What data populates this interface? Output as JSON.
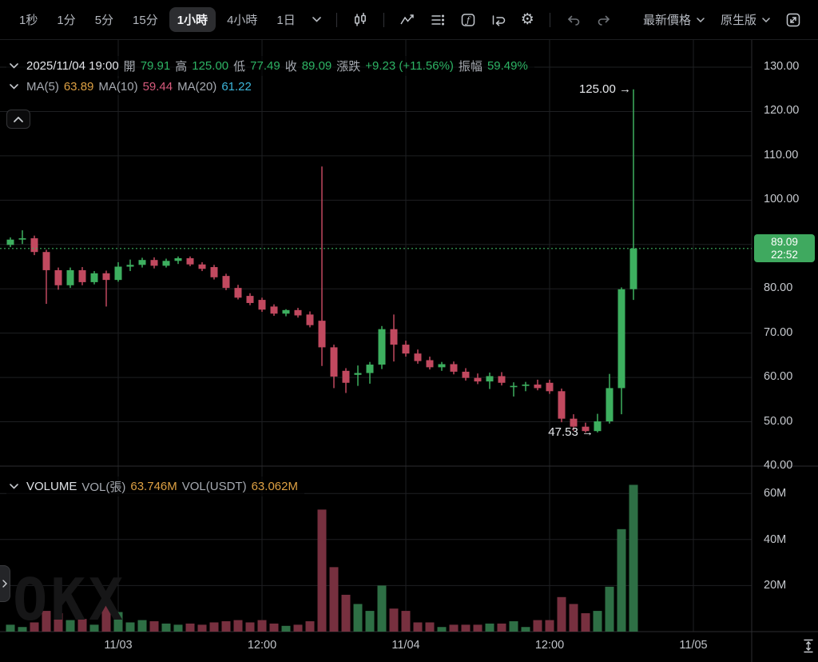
{
  "toolbar": {
    "timeframes": [
      "1秒",
      "1分",
      "5分",
      "15分",
      "1小時",
      "4小時",
      "1日"
    ],
    "active_timeframe": "1小時",
    "price_mode_label": "最新價格",
    "version_label": "原生版",
    "icons": [
      "chevron-down",
      "candlestick-chart",
      "indicators",
      "metrics-list",
      "formula",
      "replay",
      "settings",
      "undo",
      "redo",
      "fullscreen"
    ]
  },
  "ohlc_row": {
    "datetime": "2025/11/04 19:00",
    "open_label": "開",
    "open": "79.91",
    "high_label": "高",
    "high": "125.00",
    "low_label": "低",
    "low": "77.49",
    "close_label": "收",
    "close": "89.09",
    "change_label": "漲跌",
    "change": "+9.23 (+11.56%)",
    "amplitude_label": "振幅",
    "amplitude": "59.49%"
  },
  "ma_row": {
    "ma5_label": "MA(5)",
    "ma5": "63.89",
    "ma10_label": "MA(10)",
    "ma10": "59.44",
    "ma20_label": "MA(20)",
    "ma20": "61.22"
  },
  "volume_row": {
    "title": "VOLUME",
    "vol_label": "VOL(張)",
    "vol": "63.746M",
    "vol_usdt_label": "VOL(USDT)",
    "vol_usdt": "63.062M"
  },
  "price_badge": {
    "price": "89.09",
    "countdown": "22:52"
  },
  "annotations": {
    "high_label": "125.00 →",
    "low_label": "47.53 →"
  },
  "watermark": "OKX",
  "colors": {
    "up": "#3daf5f",
    "down": "#c1495f",
    "vol_up": "#2e6f45",
    "vol_down": "#77303f",
    "grid": "#1e1f22",
    "divider": "#2c2d30",
    "badge": "#3fa95f",
    "current_price_line": "#3daf5f",
    "orange": "#dda043",
    "pink": "#d65a7c",
    "cyan": "#3cb5da",
    "green_text": "#2db364"
  },
  "chart_data": {
    "type": "candlestick",
    "timeframe": "1小時",
    "ylim": [
      40,
      130
    ],
    "price_gridlines": [
      130,
      120,
      110,
      100,
      90,
      80,
      70,
      60,
      50,
      40
    ],
    "price_axis_ticks": [
      "130.00",
      "120.00",
      "110.00",
      "100.00",
      "80.00",
      "70.00",
      "60.00",
      "50.00",
      "40.00"
    ],
    "volume_gridlines": [
      {
        "label": "60M",
        "v": 60
      },
      {
        "label": "40M",
        "v": 40
      },
      {
        "label": "20M",
        "v": 20
      }
    ],
    "time_ticks": [
      {
        "label": "11/03",
        "x": 148
      },
      {
        "label": "12:00",
        "x": 328
      },
      {
        "label": "11/04",
        "x": 508
      },
      {
        "label": "12:00",
        "x": 688
      },
      {
        "label": "11/05",
        "x": 868
      }
    ],
    "grid": true,
    "legend": "none",
    "current_price": 89.09,
    "high_annotation": {
      "price": 125.0,
      "x": 793
    },
    "low_annotation": {
      "price": 47.53,
      "x": 733
    },
    "x_start": 13,
    "x_step": 15,
    "candles_format": [
      "open",
      "high",
      "low",
      "close",
      "volume_millions"
    ],
    "candles": [
      [
        89.9,
        91.6,
        89.4,
        91.1,
        3
      ],
      [
        91.1,
        93.2,
        90.1,
        91.4,
        2
      ],
      [
        91.4,
        92.0,
        87.6,
        88.3,
        4
      ],
      [
        88.3,
        88.8,
        76.6,
        84.2,
        9
      ],
      [
        84.2,
        84.8,
        79.8,
        80.8,
        8
      ],
      [
        80.8,
        84.8,
        80.2,
        84.2,
        5
      ],
      [
        84.2,
        84.9,
        80.8,
        81.5,
        5.5
      ],
      [
        81.5,
        84.0,
        81.0,
        83.5,
        3
      ],
      [
        83.5,
        84.1,
        76.0,
        82.0,
        12
      ],
      [
        82.0,
        86.0,
        81.6,
        85.0,
        8.5
      ],
      [
        85.0,
        86.6,
        84.0,
        85.4,
        4
      ],
      [
        85.4,
        87.0,
        84.8,
        86.5,
        5
      ],
      [
        86.5,
        87.1,
        84.6,
        85.2,
        4.5
      ],
      [
        85.2,
        86.8,
        84.8,
        86.3,
        3.5
      ],
      [
        86.3,
        87.3,
        85.6,
        86.9,
        3
      ],
      [
        86.9,
        87.3,
        85.1,
        85.5,
        3.5
      ],
      [
        85.5,
        86.0,
        84.0,
        84.5,
        3
      ],
      [
        84.9,
        85.4,
        82.1,
        82.6,
        4
      ],
      [
        82.9,
        83.4,
        79.7,
        80.2,
        4.5
      ],
      [
        80.2,
        80.9,
        77.6,
        78.0,
        5
      ],
      [
        78.4,
        79.0,
        76.3,
        76.8,
        4
      ],
      [
        77.5,
        78.0,
        74.8,
        75.3,
        5
      ],
      [
        76.0,
        76.5,
        73.9,
        74.4,
        3.5
      ],
      [
        74.4,
        75.4,
        73.8,
        75.2,
        2.5
      ],
      [
        75.2,
        75.7,
        73.5,
        74.0,
        3
      ],
      [
        74.2,
        74.9,
        71.3,
        71.8,
        4.5
      ],
      [
        72.8,
        107.6,
        62.6,
        66.8,
        53
      ],
      [
        66.8,
        67.4,
        57.6,
        60.2,
        28
      ],
      [
        61.5,
        62.1,
        56.5,
        58.8,
        16
      ],
      [
        60.6,
        62.7,
        58.1,
        61.0,
        12
      ],
      [
        61.0,
        63.5,
        58.6,
        62.9,
        9
      ],
      [
        62.9,
        71.6,
        61.9,
        70.9,
        20
      ],
      [
        70.9,
        74.2,
        63.6,
        67.4,
        10
      ],
      [
        67.4,
        68.3,
        64.7,
        65.4,
        9
      ],
      [
        65.4,
        66.3,
        63.1,
        63.7,
        4
      ],
      [
        63.9,
        64.7,
        61.8,
        62.3,
        4
      ],
      [
        62.3,
        63.5,
        61.5,
        63.0,
        2
      ],
      [
        63.0,
        63.6,
        60.7,
        61.3,
        3
      ],
      [
        61.3,
        62.1,
        59.3,
        59.9,
        3
      ],
      [
        59.9,
        60.9,
        58.5,
        59.1,
        3
      ],
      [
        59.1,
        61.1,
        57.4,
        60.3,
        3.5
      ],
      [
        60.3,
        61.2,
        58.2,
        58.8,
        3.5
      ],
      [
        57.9,
        58.9,
        55.7,
        58.1,
        4.5
      ],
      [
        58.1,
        59.0,
        56.9,
        58.4,
        2
      ],
      [
        58.4,
        59.5,
        57.1,
        57.6,
        5
      ],
      [
        58.8,
        59.5,
        56.3,
        56.9,
        5
      ],
      [
        56.9,
        57.5,
        49.9,
        50.7,
        15
      ],
      [
        50.7,
        51.7,
        47.9,
        48.9,
        12
      ],
      [
        48.9,
        49.8,
        47.53,
        47.9,
        8
      ],
      [
        47.9,
        51.8,
        47.6,
        50.1,
        9
      ],
      [
        50.1,
        60.8,
        49.6,
        57.6,
        19.5
      ],
      [
        57.6,
        80.3,
        51.7,
        79.9,
        44.5
      ],
      [
        79.91,
        125.0,
        77.49,
        89.09,
        63.746
      ]
    ]
  }
}
